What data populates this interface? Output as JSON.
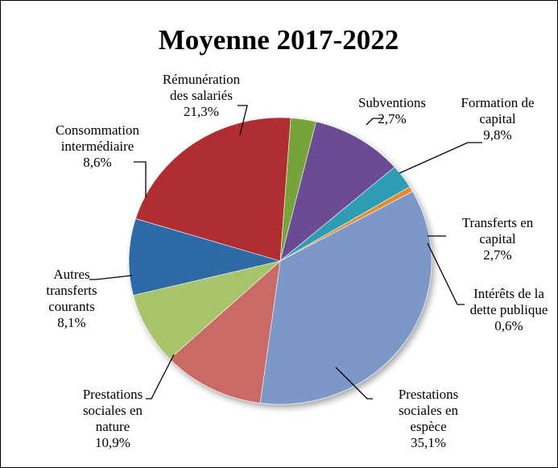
{
  "chart_data": {
    "type": "pie",
    "title": "Moyenne 2017-2022",
    "slices": [
      {
        "label_lines": [
          "Subventions",
          "2,7%"
        ],
        "value": 2.7,
        "color": "#77A33A"
      },
      {
        "label_lines": [
          "Formation de",
          "capital",
          "9,8%"
        ],
        "value": 9.8,
        "color": "#6A4C94"
      },
      {
        "label_lines": [
          "Transferts en",
          "capital",
          "2,7%"
        ],
        "value": 2.7,
        "color": "#2F9DB3"
      },
      {
        "label_lines": [
          "Intérêts de la",
          "dette publique",
          "0,6%"
        ],
        "value": 0.6,
        "color": "#E58A2E"
      },
      {
        "label_lines": [
          "Prestations",
          "sociales en",
          "espèce",
          "35,1%"
        ],
        "value": 35.1,
        "color": "#7C97C8"
      },
      {
        "label_lines": [
          "Prestations",
          "sociales en",
          "nature",
          "10,9%"
        ],
        "value": 10.9,
        "color": "#C96A66"
      },
      {
        "label_lines": [
          "Autres",
          "transferts",
          "courants",
          "8,1%"
        ],
        "value": 8.1,
        "color": "#A8C46B"
      },
      {
        "label_lines": [
          "Consommation",
          "intermédiaire",
          "8,6%"
        ],
        "value": 8.6,
        "color": "#2E69A8"
      },
      {
        "label_lines": [
          "Rémunération",
          "des salariés",
          "21,3%"
        ],
        "value": 21.3,
        "color": "#B02E30"
      }
    ]
  }
}
